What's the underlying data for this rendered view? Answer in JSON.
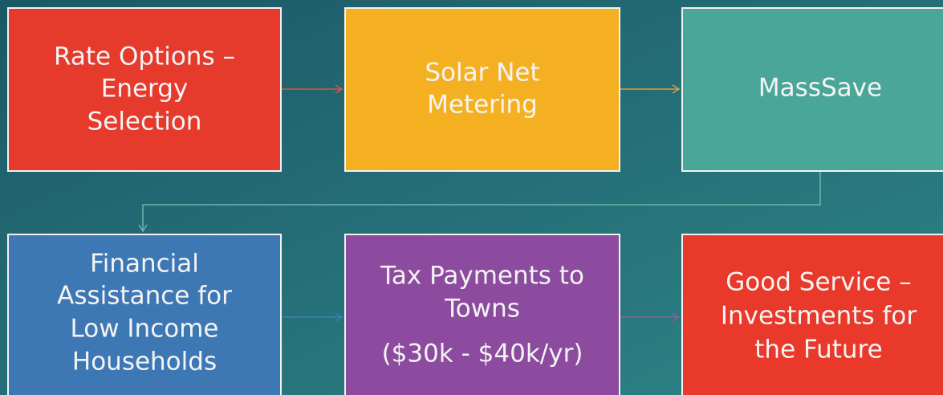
{
  "nodes": [
    {
      "lines": [
        "Rate Options –",
        "Energy",
        "Selection"
      ]
    },
    {
      "lines": [
        "Solar Net",
        "Metering"
      ]
    },
    {
      "lines": [
        "MassSave"
      ]
    },
    {
      "lines": [
        "Financial",
        "Assistance for",
        "Low Income",
        "Households"
      ]
    },
    {
      "lines": [
        "Tax Payments to",
        "Towns",
        "($30k - $40k/yr)"
      ]
    },
    {
      "lines": [
        "Good Service –",
        "Investments for",
        "the Future"
      ]
    }
  ]
}
